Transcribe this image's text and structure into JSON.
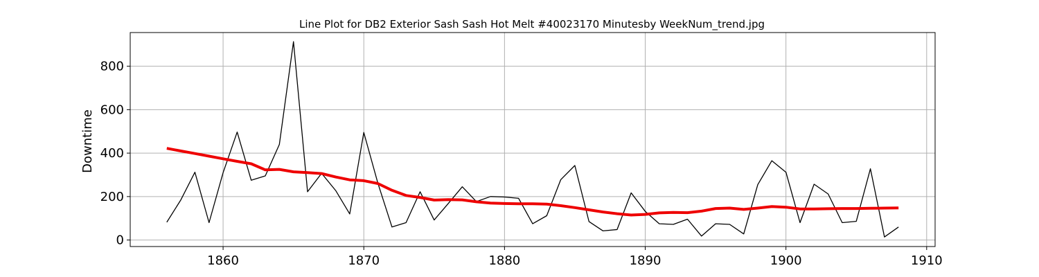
{
  "chart_data": {
    "type": "line",
    "title": "Line Plot for DB2 Exterior Sash Sash Hot Melt #40023170 Minutesby WeekNum_trend.jpg",
    "xlabel": "",
    "ylabel": "Downtime",
    "xlim": [
      1853.4,
      1910.6
    ],
    "ylim": [
      -30,
      955
    ],
    "xticks": [
      1860,
      1870,
      1880,
      1890,
      1900,
      1910
    ],
    "yticks": [
      0,
      200,
      400,
      600,
      800
    ],
    "grid": true,
    "x": [
      1856,
      1857,
      1858,
      1859,
      1860,
      1861,
      1862,
      1863,
      1864,
      1865,
      1866,
      1867,
      1868,
      1869,
      1870,
      1871,
      1872,
      1873,
      1874,
      1875,
      1876,
      1877,
      1878,
      1879,
      1880,
      1881,
      1882,
      1883,
      1884,
      1885,
      1886,
      1887,
      1888,
      1889,
      1890,
      1891,
      1892,
      1893,
      1894,
      1895,
      1896,
      1897,
      1898,
      1899,
      1900,
      1901,
      1902,
      1903,
      1904,
      1905,
      1906,
      1907,
      1908
    ],
    "series": [
      {
        "color": "#000000",
        "values": [
          82,
          185,
          312,
          80,
          310,
          497,
          275,
          295,
          440,
          913,
          222,
          307,
          228,
          120,
          495,
          262,
          60,
          80,
          222,
          92,
          168,
          245,
          177,
          200,
          198,
          192,
          75,
          112,
          278,
          343,
          85,
          42,
          48,
          217,
          132,
          75,
          72,
          96,
          18,
          75,
          72,
          28,
          255,
          365,
          312,
          80,
          257,
          212,
          80,
          86,
          328,
          14,
          60
        ]
      },
      {
        "color": "#ee0000",
        "values": [
          422,
          410,
          398,
          386,
          374,
          362,
          351,
          323,
          325,
          314,
          310,
          306,
          290,
          277,
          273,
          260,
          229,
          205,
          196,
          184,
          186,
          185,
          176,
          170,
          168,
          167,
          167,
          165,
          158,
          149,
          139,
          129,
          121,
          115,
          118,
          125,
          127,
          126,
          133,
          145,
          147,
          141,
          147,
          154,
          151,
          143,
          143,
          144,
          145,
          145,
          146,
          147,
          148
        ]
      }
    ]
  }
}
